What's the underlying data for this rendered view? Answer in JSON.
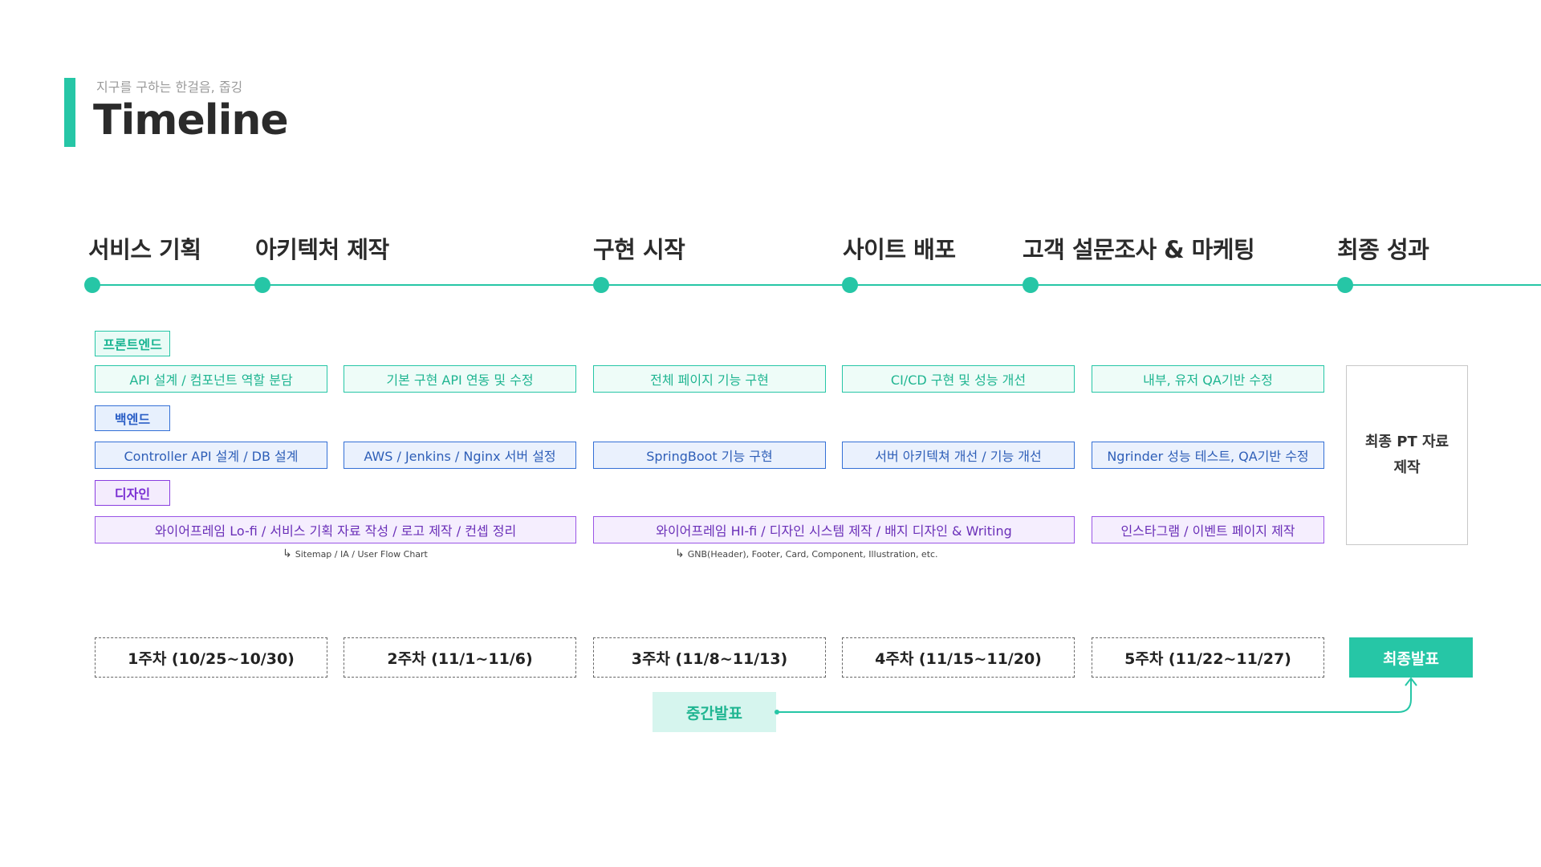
{
  "header": {
    "subtitle": "지구를 구하는 한걸음, 줍깅",
    "title": "Timeline"
  },
  "phases": [
    "서비스 기획",
    "아키텍처 제작",
    "구현 시작",
    "사이트 배포",
    "고객 설문조사 & 마케팅",
    "최종 성과"
  ],
  "categories": {
    "frontend": "프론트엔드",
    "backend": "백엔드",
    "design": "디자인"
  },
  "frontend_tasks": [
    "API 설계 / 컴포넌트 역할 분담",
    "기본 구현 API 연동 및 수정",
    "전체 페이지 기능 구현",
    "CI/CD 구현 및 성능 개선",
    "내부, 유저 QA기반 수정"
  ],
  "backend_tasks": [
    "Controller API 설계 / DB 설계",
    "AWS / Jenkins /  Nginx 서버 설정",
    "SpringBoot 기능 구현",
    "서버 아키텍쳐 개선 / 기능 개선",
    "Ngrinder  성능 테스트, QA기반 수정"
  ],
  "design_tasks": [
    "와이어프레임 Lo-fi / 서비스 기획 자료 작성 / 로고 제작 / 컨셉 정리",
    "와이어프레임 HI-fi / 디자인 시스템 제작 / 배지 디자인 & Writing",
    "인스타그램 / 이벤트 페이지 제작"
  ],
  "notes": [
    "Sitemap / IA / User Flow Chart",
    "GNB(Header), Footer, Card, Component, Illustration, etc."
  ],
  "final_box": {
    "line1": "최종 PT 자료",
    "line2": "제작"
  },
  "weeks": [
    "1주차 (10/25~10/30)",
    "2주차 (11/1~11/6)",
    "3주차 (11/8~11/13)",
    "4주차 (11/15~11/20)",
    "5주차 (11/22~11/27)"
  ],
  "buttons": {
    "final": "최종발표",
    "mid": "중간발표"
  },
  "colors": {
    "accent": "#26c6a6",
    "backend": "#3470d6",
    "design": "#8a3ee0"
  }
}
